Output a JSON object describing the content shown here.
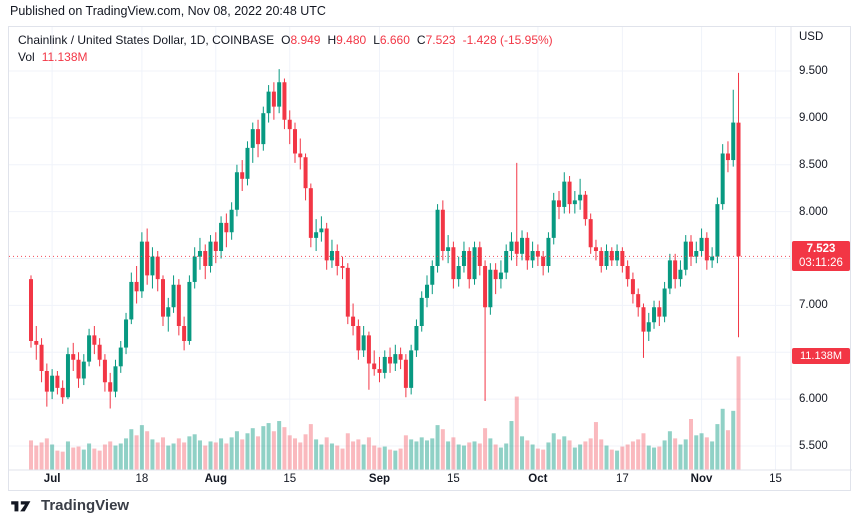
{
  "published_caption": "Published on TradingView.com, Nov 08, 2022 20:48 UTC",
  "legend": {
    "symbol_line": "Chainlink / United States Dollar, 1D, COINBASE",
    "ohlc": {
      "o_label": "O",
      "o": "8.949",
      "h_label": "H",
      "h": "9.480",
      "l_label": "L",
      "l": "6.660",
      "c_label": "C",
      "c": "7.523",
      "change": "-1.428 (-15.95%)"
    },
    "vol_label": "Vol",
    "vol_value": "11.138M"
  },
  "price_axis": {
    "currency": "USD",
    "ticks": [
      {
        "label": "9.500",
        "price": 9.5
      },
      {
        "label": "9.000",
        "price": 9.0
      },
      {
        "label": "8.500",
        "price": 8.5
      },
      {
        "label": "8.000",
        "price": 8.0
      },
      {
        "label": "7.000",
        "price": 7.0
      },
      {
        "label": "6.000",
        "price": 6.0
      },
      {
        "label": "5.500",
        "price": 5.5
      }
    ],
    "last_price_badge": {
      "price_label": "7.523",
      "countdown": "03:11:26",
      "price": 7.523
    },
    "volume_badge": {
      "label": "11.138M",
      "volume": 11.138
    }
  },
  "time_axis": {
    "ticks": [
      {
        "label": "Jul",
        "index": 4,
        "month": true
      },
      {
        "label": "18",
        "index": 21,
        "month": false
      },
      {
        "label": "Aug",
        "index": 35,
        "month": true
      },
      {
        "label": "15",
        "index": 49,
        "month": false
      },
      {
        "label": "Sep",
        "index": 66,
        "month": true
      },
      {
        "label": "15",
        "index": 80,
        "month": false
      },
      {
        "label": "Oct",
        "index": 96,
        "month": true
      },
      {
        "label": "17",
        "index": 112,
        "month": false
      },
      {
        "label": "Nov",
        "index": 127,
        "month": true
      },
      {
        "label": "15",
        "index": 141,
        "month": false
      }
    ]
  },
  "footer": {
    "brand": "TradingView"
  },
  "colors": {
    "up": "#089981",
    "down": "#F23645",
    "vol_up": "rgba(8,153,129,0.45)",
    "vol_down": "rgba(242,54,69,0.35)",
    "accent_red": "#F23645",
    "text": "#131722",
    "grid": "#F0F3FA",
    "border": "#E0E3EB"
  },
  "chart_data": {
    "type": "candlestick",
    "title": "Chainlink / United States Dollar",
    "interval": "1D",
    "exchange": "COINBASE",
    "last_close": 7.523,
    "change": -1.428,
    "change_pct": -15.95,
    "volume_unit": "M",
    "y_axis": {
      "min": 5.23,
      "max": 9.97,
      "grid_min": 5.5,
      "grid_max": 9.5,
      "grid_step": 0.5
    },
    "columns": [
      "open",
      "high",
      "low",
      "close",
      "volume_millions"
    ],
    "candles": [
      [
        7.28,
        7.32,
        6.55,
        6.62,
        2.9
      ],
      [
        6.62,
        6.78,
        6.42,
        6.58,
        2.4
      ],
      [
        6.58,
        6.65,
        6.18,
        6.3,
        2.7
      ],
      [
        6.3,
        6.38,
        5.92,
        6.08,
        3.1
      ],
      [
        6.08,
        6.32,
        6.0,
        6.25,
        2.5
      ],
      [
        6.25,
        6.3,
        6.05,
        6.12,
        1.9
      ],
      [
        6.12,
        6.2,
        5.95,
        6.02,
        1.8
      ],
      [
        6.02,
        6.55,
        6.0,
        6.48,
        2.8
      ],
      [
        6.48,
        6.6,
        6.3,
        6.42,
        2.2
      ],
      [
        6.42,
        6.5,
        6.12,
        6.22,
        2.3
      ],
      [
        6.22,
        6.48,
        6.15,
        6.4,
        2.0
      ],
      [
        6.4,
        6.75,
        6.35,
        6.68,
        2.6
      ],
      [
        6.68,
        6.78,
        6.48,
        6.58,
        2.1
      ],
      [
        6.58,
        6.65,
        6.35,
        6.42,
        1.9
      ],
      [
        6.42,
        6.48,
        6.08,
        6.18,
        2.5
      ],
      [
        6.18,
        6.28,
        5.9,
        6.08,
        2.8
      ],
      [
        6.08,
        6.42,
        6.02,
        6.35,
        2.4
      ],
      [
        6.35,
        6.62,
        6.28,
        6.55,
        2.6
      ],
      [
        6.55,
        6.92,
        6.48,
        6.85,
        3.1
      ],
      [
        6.85,
        7.35,
        6.8,
        7.25,
        4.0
      ],
      [
        7.25,
        7.42,
        7.02,
        7.15,
        3.4
      ],
      [
        7.15,
        7.78,
        7.08,
        7.68,
        4.4
      ],
      [
        7.68,
        7.82,
        7.22,
        7.32,
        3.8
      ],
      [
        7.32,
        7.62,
        7.18,
        7.52,
        3.0
      ],
      [
        7.52,
        7.58,
        7.15,
        7.28,
        2.7
      ],
      [
        7.28,
        7.32,
        6.78,
        6.88,
        3.2
      ],
      [
        6.88,
        7.08,
        6.72,
        6.98,
        2.4
      ],
      [
        6.98,
        7.32,
        6.92,
        7.22,
        2.6
      ],
      [
        7.22,
        7.28,
        6.68,
        6.78,
        3.1
      ],
      [
        6.78,
        6.88,
        6.52,
        6.62,
        2.7
      ],
      [
        6.62,
        7.32,
        6.58,
        7.25,
        3.3
      ],
      [
        7.25,
        7.62,
        7.18,
        7.52,
        3.5
      ],
      [
        7.52,
        7.72,
        7.38,
        7.58,
        2.9
      ],
      [
        7.58,
        7.65,
        7.28,
        7.42,
        2.4
      ],
      [
        7.42,
        7.75,
        7.35,
        7.68,
        2.8
      ],
      [
        7.68,
        7.78,
        7.45,
        7.58,
        2.7
      ],
      [
        7.58,
        7.95,
        7.5,
        7.88,
        3.1
      ],
      [
        7.88,
        7.98,
        7.62,
        7.78,
        2.6
      ],
      [
        7.78,
        8.1,
        7.7,
        8.02,
        3.2
      ],
      [
        8.02,
        8.5,
        7.95,
        8.42,
        3.8
      ],
      [
        8.42,
        8.55,
        8.22,
        8.35,
        3.0
      ],
      [
        8.35,
        8.75,
        8.28,
        8.68,
        3.6
      ],
      [
        8.68,
        8.95,
        8.52,
        8.88,
        4.1
      ],
      [
        8.88,
        8.98,
        8.58,
        8.72,
        3.3
      ],
      [
        8.72,
        9.12,
        8.65,
        9.05,
        4.3
      ],
      [
        9.05,
        9.35,
        8.95,
        9.28,
        4.6
      ],
      [
        9.28,
        9.38,
        8.98,
        9.12,
        3.8
      ],
      [
        9.12,
        9.52,
        9.05,
        9.38,
        4.8
      ],
      [
        9.38,
        9.42,
        8.88,
        8.98,
        4.2
      ],
      [
        8.98,
        9.08,
        8.72,
        8.88,
        3.4
      ],
      [
        8.88,
        8.95,
        8.52,
        8.62,
        3.1
      ],
      [
        8.62,
        8.78,
        8.45,
        8.58,
        2.7
      ],
      [
        8.58,
        8.62,
        8.12,
        8.25,
        3.5
      ],
      [
        8.25,
        8.3,
        7.62,
        7.72,
        4.5
      ],
      [
        7.72,
        7.92,
        7.58,
        7.78,
        3.0
      ],
      [
        7.78,
        7.95,
        7.68,
        7.82,
        2.5
      ],
      [
        7.82,
        7.88,
        7.38,
        7.48,
        3.2
      ],
      [
        7.48,
        7.7,
        7.4,
        7.58,
        2.6
      ],
      [
        7.58,
        7.65,
        7.32,
        7.42,
        2.4
      ],
      [
        7.42,
        7.52,
        7.28,
        7.4,
        2.1
      ],
      [
        7.4,
        7.45,
        6.8,
        6.88,
        3.6
      ],
      [
        6.88,
        7.02,
        6.68,
        6.78,
        2.8
      ],
      [
        6.78,
        6.85,
        6.42,
        6.52,
        3.0
      ],
      [
        6.52,
        6.78,
        6.45,
        6.68,
        2.5
      ],
      [
        6.68,
        6.72,
        6.1,
        6.38,
        3.2
      ],
      [
        6.38,
        6.52,
        6.25,
        6.32,
        2.4
      ],
      [
        6.32,
        6.45,
        6.18,
        6.28,
        2.2
      ],
      [
        6.28,
        6.52,
        6.22,
        6.45,
        2.3
      ],
      [
        6.45,
        6.55,
        6.28,
        6.38,
        2.0
      ],
      [
        6.38,
        6.58,
        6.3,
        6.48,
        1.9
      ],
      [
        6.48,
        6.55,
        6.32,
        6.42,
        2.1
      ],
      [
        6.42,
        6.48,
        6.02,
        6.12,
        3.4
      ],
      [
        6.12,
        6.58,
        6.05,
        6.52,
        3.0
      ],
      [
        6.52,
        6.85,
        6.45,
        6.78,
        2.8
      ],
      [
        6.78,
        7.15,
        6.72,
        7.08,
        3.2
      ],
      [
        7.08,
        7.32,
        6.98,
        7.22,
        2.9
      ],
      [
        7.22,
        7.48,
        7.12,
        7.42,
        3.1
      ],
      [
        7.42,
        8.08,
        7.35,
        8.02,
        4.4
      ],
      [
        8.02,
        8.12,
        7.48,
        7.58,
        4.0
      ],
      [
        7.58,
        7.75,
        7.45,
        7.62,
        2.8
      ],
      [
        7.62,
        7.68,
        7.18,
        7.28,
        3.2
      ],
      [
        7.28,
        7.52,
        7.2,
        7.42,
        2.5
      ],
      [
        7.42,
        7.68,
        7.35,
        7.58,
        2.4
      ],
      [
        7.58,
        7.62,
        7.18,
        7.28,
        2.7
      ],
      [
        7.28,
        7.68,
        7.22,
        7.62,
        2.8
      ],
      [
        7.62,
        7.68,
        7.32,
        7.42,
        2.6
      ],
      [
        7.42,
        7.48,
        5.98,
        6.98,
        4.1
      ],
      [
        6.98,
        7.45,
        6.9,
        7.38,
        3.1
      ],
      [
        7.38,
        7.45,
        7.12,
        7.28,
        2.5
      ],
      [
        7.28,
        7.48,
        7.18,
        7.35,
        2.2
      ],
      [
        7.35,
        7.65,
        7.28,
        7.58,
        2.6
      ],
      [
        7.58,
        7.78,
        7.48,
        7.68,
        4.8
      ],
      [
        7.68,
        8.52,
        7.42,
        7.55,
        7.2
      ],
      [
        7.55,
        7.8,
        7.48,
        7.72,
        3.3
      ],
      [
        7.72,
        7.78,
        7.38,
        7.48,
        2.9
      ],
      [
        7.48,
        7.68,
        7.4,
        7.58,
        2.5
      ],
      [
        7.58,
        7.65,
        7.42,
        7.52,
        2.1
      ],
      [
        7.52,
        7.58,
        7.32,
        7.42,
        2.0
      ],
      [
        7.42,
        7.78,
        7.35,
        7.72,
        2.7
      ],
      [
        7.72,
        8.2,
        7.65,
        8.12,
        3.6
      ],
      [
        8.12,
        8.22,
        7.92,
        8.05,
        3.0
      ],
      [
        8.05,
        8.42,
        7.98,
        8.32,
        3.3
      ],
      [
        8.32,
        8.38,
        7.98,
        8.08,
        2.9
      ],
      [
        8.08,
        8.22,
        7.98,
        8.12,
        2.2
      ],
      [
        8.12,
        8.35,
        8.02,
        8.18,
        2.5
      ],
      [
        8.18,
        8.22,
        7.85,
        7.92,
        2.8
      ],
      [
        7.92,
        7.98,
        7.55,
        7.62,
        3.1
      ],
      [
        7.62,
        7.7,
        7.48,
        7.58,
        4.7
      ],
      [
        7.58,
        7.62,
        7.35,
        7.42,
        3.0
      ],
      [
        7.42,
        7.65,
        7.38,
        7.58,
        2.4
      ],
      [
        7.58,
        7.62,
        7.42,
        7.48,
        2.0
      ],
      [
        7.48,
        7.65,
        7.42,
        7.58,
        1.9
      ],
      [
        7.58,
        7.62,
        7.35,
        7.42,
        2.3
      ],
      [
        7.42,
        7.48,
        7.2,
        7.28,
        2.5
      ],
      [
        7.28,
        7.35,
        7.02,
        7.12,
        2.8
      ],
      [
        7.12,
        7.18,
        6.88,
        6.98,
        3.0
      ],
      [
        6.98,
        7.02,
        6.44,
        6.72,
        3.6
      ],
      [
        6.72,
        6.92,
        6.62,
        6.82,
        2.4
      ],
      [
        6.82,
        7.05,
        6.75,
        6.98,
        2.2
      ],
      [
        6.98,
        7.05,
        6.78,
        6.88,
        2.3
      ],
      [
        6.88,
        7.25,
        6.82,
        7.18,
        2.9
      ],
      [
        7.18,
        7.55,
        7.12,
        7.48,
        3.8
      ],
      [
        7.48,
        7.55,
        7.18,
        7.28,
        3.1
      ],
      [
        7.28,
        7.48,
        7.2,
        7.38,
        2.5
      ],
      [
        7.38,
        7.75,
        7.32,
        7.68,
        3.0
      ],
      [
        7.68,
        7.75,
        7.42,
        7.52,
        5.0
      ],
      [
        7.52,
        7.68,
        7.45,
        7.58,
        3.4
      ],
      [
        7.58,
        7.82,
        7.52,
        7.72,
        3.6
      ],
      [
        7.72,
        7.78,
        7.38,
        7.48,
        3.2
      ],
      [
        7.48,
        7.62,
        7.4,
        7.52,
        2.8
      ],
      [
        7.52,
        8.15,
        7.45,
        8.08,
        4.5
      ],
      [
        8.08,
        8.72,
        8.02,
        8.62,
        6.0
      ],
      [
        8.62,
        8.75,
        8.42,
        8.55,
        3.9
      ],
      [
        8.55,
        9.3,
        8.48,
        8.95,
        5.8
      ],
      [
        8.949,
        9.48,
        6.66,
        7.523,
        11.138
      ]
    ]
  }
}
